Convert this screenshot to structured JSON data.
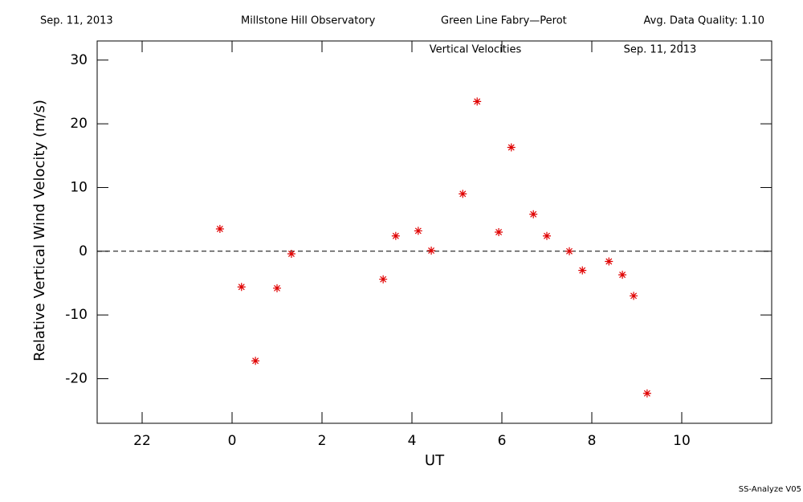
{
  "header": {
    "date": "Sep. 11, 2013",
    "observatory": "Millstone Hill Observatory",
    "instrument": "Green Line Fabry—Perot",
    "quality": "Avg. Data Quality: 1.10"
  },
  "footer": "SS-Analyze V05",
  "chart_data": {
    "type": "scatter",
    "title": "Vertical Velocities",
    "subtitle": "Sep. 11, 2013",
    "x_label": "UT",
    "y_label": "Relative Vertical Wind Velocity (m/s)",
    "xlim": [
      21,
      36
    ],
    "ylim": [
      -27,
      33
    ],
    "xticks": [
      {
        "value": 22,
        "label": "22"
      },
      {
        "value": 24,
        "label": "0"
      },
      {
        "value": 26,
        "label": "2"
      },
      {
        "value": 28,
        "label": "4"
      },
      {
        "value": 30,
        "label": "6"
      },
      {
        "value": 32,
        "label": "8"
      },
      {
        "value": 34,
        "label": "10"
      }
    ],
    "yticks": [
      -20,
      -10,
      0,
      10,
      20,
      30
    ],
    "hline": 0,
    "series": [
      {
        "color": "#e00000",
        "x": [
          23.73,
          24.21,
          24.52,
          25.0,
          25.32,
          27.36,
          27.64,
          28.14,
          28.43,
          29.13,
          29.45,
          29.93,
          30.21,
          30.7,
          31.0,
          31.5,
          31.79,
          32.38,
          32.68,
          32.93,
          33.23
        ],
        "values": [
          3.5,
          -5.6,
          -17.2,
          -5.8,
          -0.4,
          -4.4,
          2.4,
          3.2,
          0.1,
          9.0,
          23.5,
          3.0,
          16.3,
          5.8,
          2.4,
          0.0,
          -3.0,
          -1.6,
          -3.7,
          -7.0,
          -22.3
        ]
      }
    ]
  }
}
